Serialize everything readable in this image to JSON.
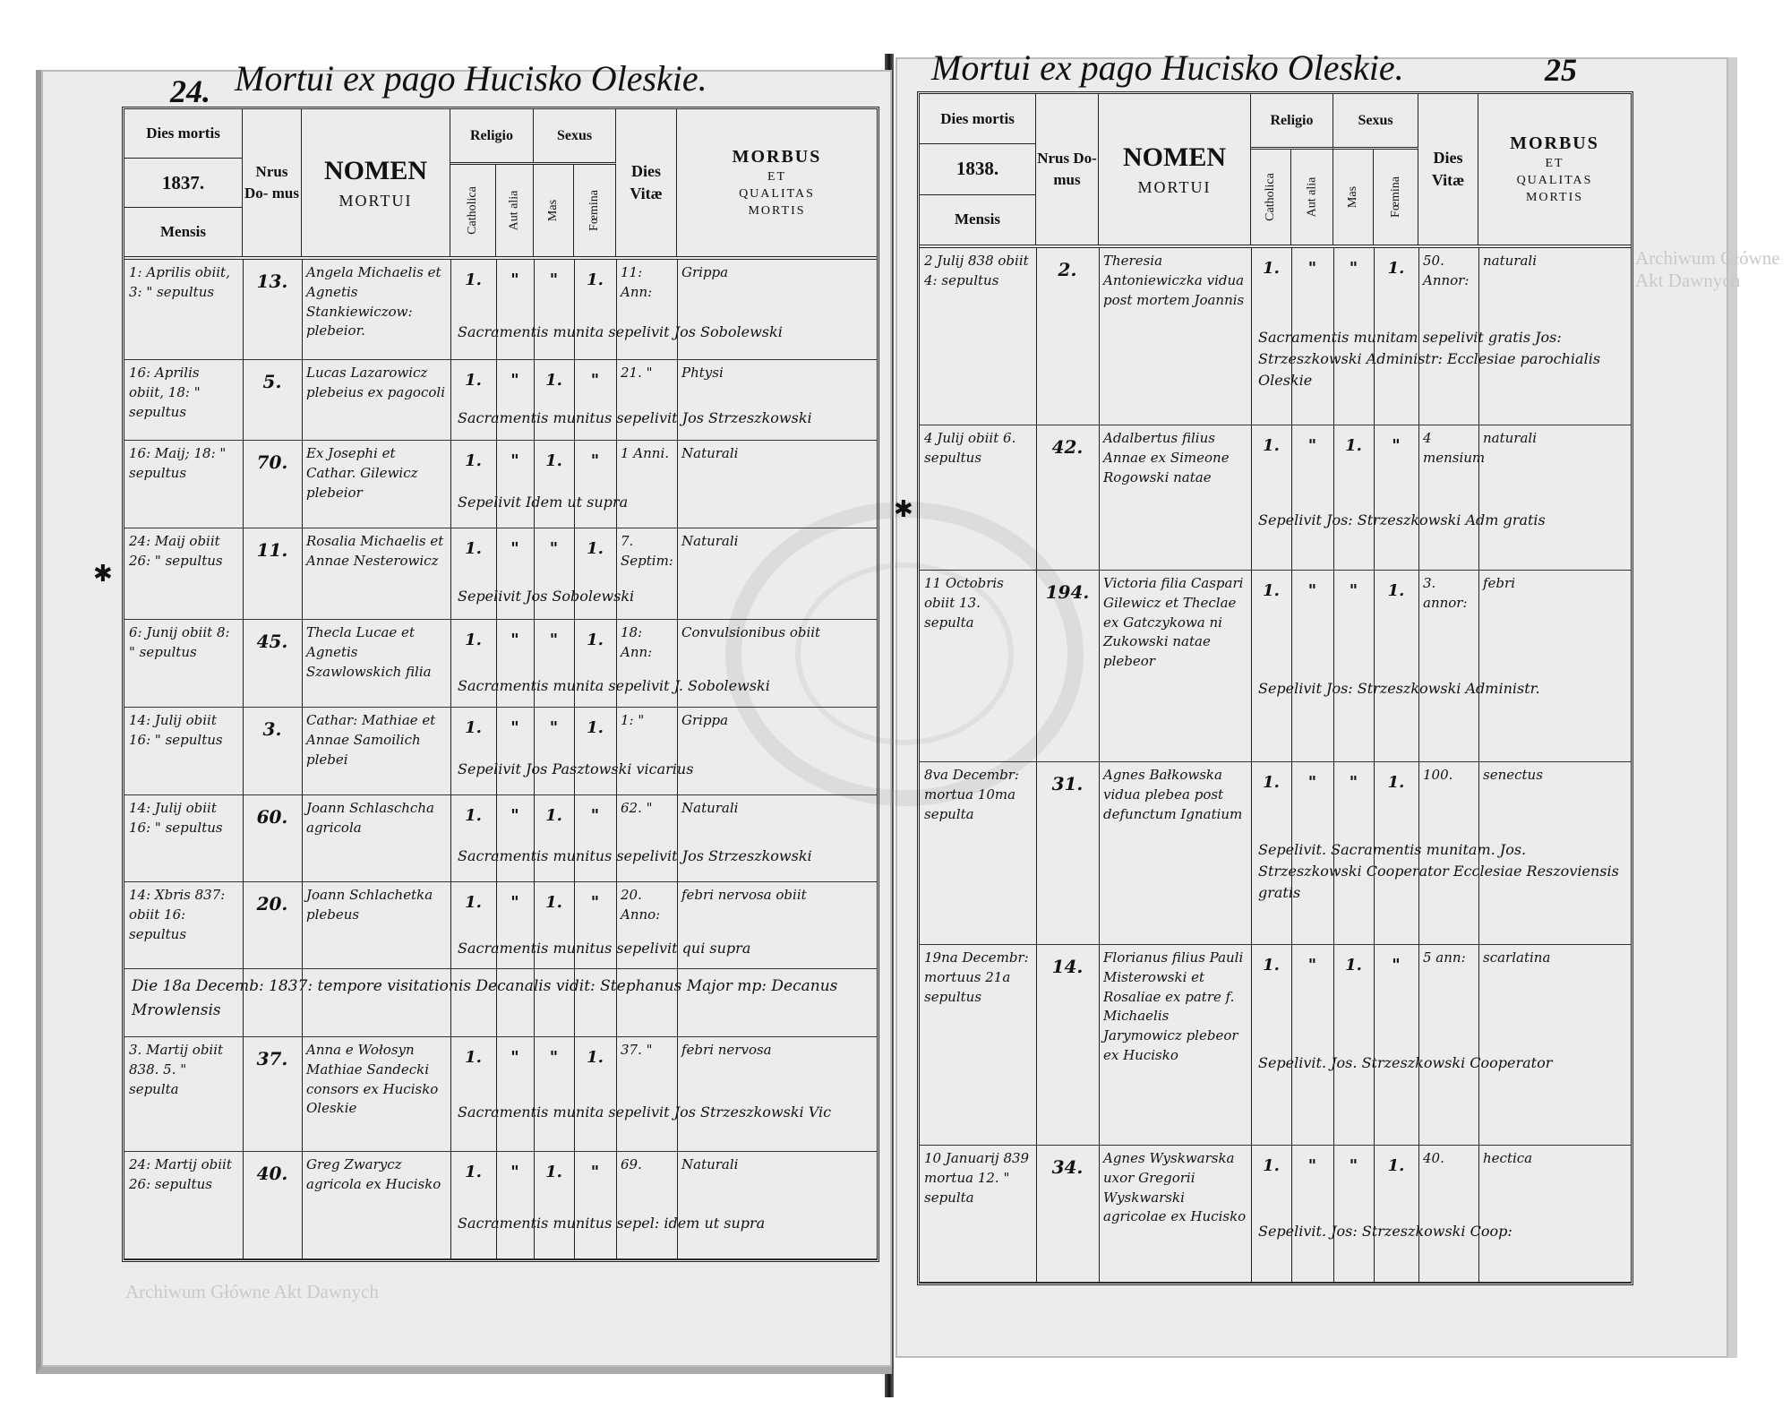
{
  "watermark": "Archiwum Główne Akt Dawnych",
  "stamp_text": "ARCHIWUM GŁÓWNE AKT DAWNYCH",
  "header": {
    "dies_mortis": "Dies mortis",
    "mensis": "Mensis",
    "nrus_domus": "Nrus Do- mus",
    "nomen": "NOMEN",
    "mortui": "MORTUI",
    "religio": "Religio",
    "catholica": "Catholica",
    "aut_alia": "Aut alia",
    "sexus": "Sexus",
    "mas": "Mas",
    "foemina": "Fœmina",
    "dies_vitae": "Dies Vitæ",
    "morbus": "MORBUS",
    "et": "ET",
    "qualitas": "QUALITAS",
    "mortis": "MORTIS"
  },
  "pages": [
    {
      "page_number": "24.",
      "title": "Mortui ex pago Hucisko Oleskie.",
      "year": "1837.",
      "rows": [
        {
          "date": "1: Aprilis obiit, 3: \" sepultus",
          "nr": "13.",
          "name": "Angela Michaelis et Agnetis Stankiewiczow: plebeior.",
          "cath": "1.",
          "aut": "\"",
          "mas": "\"",
          "foem": "1.",
          "vitae": "11: Ann:",
          "morbus": "Grippa",
          "note": "Sacramentis munita sepelivit Jos Sobolewski"
        },
        {
          "date": "16: Aprilis obiit, 18: \" sepultus",
          "nr": "5.",
          "name": "Lucas Lazarowicz plebeius ex pagocoli",
          "cath": "1.",
          "aut": "\"",
          "mas": "1.",
          "foem": "\"",
          "vitae": "21. \"",
          "morbus": "Phtysi",
          "note": "Sacramentis munitus sepelivit Jos Strzeszkowski"
        },
        {
          "date": "16: Maij; 18: \" sepultus",
          "nr": "70.",
          "name": "Ex Josephi et Cathar. Gilewicz plebeior",
          "cath": "1.",
          "aut": "\"",
          "mas": "1.",
          "foem": "\"",
          "vitae": "1 Anni.",
          "morbus": "Naturali",
          "note": "Sepelivit Idem ut supra"
        },
        {
          "date": "24: Maij obiit 26: \" sepultus",
          "nr": "11.",
          "name": "Rosalia Michaelis et Annae Nesterowicz",
          "cath": "1.",
          "aut": "\"",
          "mas": "\"",
          "foem": "1.",
          "vitae": "7. Septim:",
          "morbus": "Naturali",
          "note": "Sepelivit Jos Sobolewski"
        },
        {
          "date": "6: Junij obiit 8: \" sepultus",
          "nr": "45.",
          "name": "Thecla Lucae et Agnetis Szawlowskich filia",
          "cath": "1.",
          "aut": "\"",
          "mas": "\"",
          "foem": "1.",
          "vitae": "18: Ann:",
          "morbus": "Convulsionibus obiit",
          "note": "Sacramentis munita sepelivit J. Sobolewski"
        },
        {
          "date": "14: Julij obiit 16: \" sepultus",
          "nr": "3.",
          "name": "Cathar: Mathiae et Annae Samoilich plebei",
          "cath": "1.",
          "aut": "\"",
          "mas": "\"",
          "foem": "1.",
          "vitae": "1: \"",
          "morbus": "Grippa",
          "note": "Sepelivit Jos Pasztowski vicarius"
        },
        {
          "date": "14: Julij obiit 16: \" sepultus",
          "nr": "60.",
          "name": "Joann Schlaschcha agricola",
          "cath": "1.",
          "aut": "\"",
          "mas": "1.",
          "foem": "\"",
          "vitae": "62. \"",
          "morbus": "Naturali",
          "note": "Sacramentis munitus sepelivit Jos Strzeszkowski"
        },
        {
          "date": "14: Xbris 837: obiit 16: sepultus",
          "nr": "20.",
          "name": "Joann Schlachetka plebeus",
          "cath": "1.",
          "aut": "\"",
          "mas": "1.",
          "foem": "\"",
          "vitae": "20. Anno:",
          "morbus": "febri nervosa obiit",
          "note": "Sacramentis munitus sepelivit qui supra"
        },
        {
          "visitation": "Die 18a Decemb: 1837: tempore visitationis Decanalis vidit: Stephanus Major mp: Decanus Mrowlensis"
        },
        {
          "date": "3. Martij obiit 838. 5. \" sepulta",
          "nr": "37.",
          "name": "Anna e Wołosyn Mathiae Sandecki consors ex Hucisko Oleskie",
          "cath": "1.",
          "aut": "\"",
          "mas": "\"",
          "foem": "1.",
          "vitae": "37. \"",
          "morbus": "febri nervosa",
          "note": "Sacramentis munita sepelivit Jos Strzeszkowski Vic"
        },
        {
          "date": "24: Martij obiit 26: sepultus",
          "nr": "40.",
          "name": "Greg Zwarycz agricola ex Hucisko",
          "cath": "1.",
          "aut": "\"",
          "mas": "1.",
          "foem": "\"",
          "vitae": "69.",
          "morbus": "Naturali",
          "note": "Sacramentis munitus sepel: idem ut supra"
        }
      ]
    },
    {
      "page_number": "25",
      "title": "Mortui ex pago Hucisko Oleskie.",
      "year": "1838.",
      "rows": [
        {
          "date": "2 Julij 838 obiit 4: sepultus",
          "nr": "2.",
          "name": "Theresia Antoniewiczka vidua post mortem Joannis",
          "cath": "1.",
          "aut": "\"",
          "mas": "\"",
          "foem": "1.",
          "vitae": "50. Annor:",
          "morbus": "naturali",
          "note": "Sacramentis munitam sepelivit gratis Jos: Strzeszkowski Administr: Ecclesiae parochialis Oleskie"
        },
        {
          "date": "4 Julij obiit 6. sepultus",
          "nr": "42.",
          "name": "Adalbertus filius Annae ex Simeone Rogowski natae",
          "cath": "1.",
          "aut": "\"",
          "mas": "1.",
          "foem": "\"",
          "vitae": "4 mensium",
          "morbus": "naturali",
          "note": "Sepelivit Jos: Strzeszkowski Adm gratis"
        },
        {
          "date": "11 Octobris obiit 13. sepulta",
          "nr": "194.",
          "name": "Victoria filia Caspari Gilewicz et Theclae ex Gatczykowa ni Zukowski natae plebeor",
          "cath": "1.",
          "aut": "\"",
          "mas": "\"",
          "foem": "1.",
          "vitae": "3. annor:",
          "morbus": "febri",
          "note": "Sepelivit Jos: Strzeszkowski Administr."
        },
        {
          "date": "8va Decembr: mortua 10ma sepulta",
          "nr": "31.",
          "name": "Agnes Bałkowska vidua plebea post defunctum Ignatium",
          "cath": "1.",
          "aut": "\"",
          "mas": "\"",
          "foem": "1.",
          "vitae": "100.",
          "morbus": "senectus",
          "note": "Sepelivit. Sacramentis munitam. Jos. Strzeszkowski Cooperator Ecclesiae Reszoviensis gratis"
        },
        {
          "date": "19na Decembr: mortuus 21a sepultus",
          "nr": "14.",
          "name": "Florianus filius Pauli Misterowski et Rosaliae ex patre f. Michaelis Jarymowicz plebeor ex Hucisko",
          "cath": "1.",
          "aut": "\"",
          "mas": "1.",
          "foem": "\"",
          "vitae": "5 ann:",
          "morbus": "scarlatina",
          "note": "Sepelivit. Jos. Strzeszkowski Cooperator"
        },
        {
          "date": "10 Januarij 839 mortua 12. \" sepulta",
          "nr": "34.",
          "name": "Agnes Wyskwarska uxor Gregorii Wyskwarski agricolae ex Hucisko",
          "cath": "1.",
          "aut": "\"",
          "mas": "\"",
          "foem": "1.",
          "vitae": "40.",
          "morbus": "hectica",
          "note": "Sepelivit. Jos: Strzeszkowski Coop:"
        }
      ]
    }
  ]
}
